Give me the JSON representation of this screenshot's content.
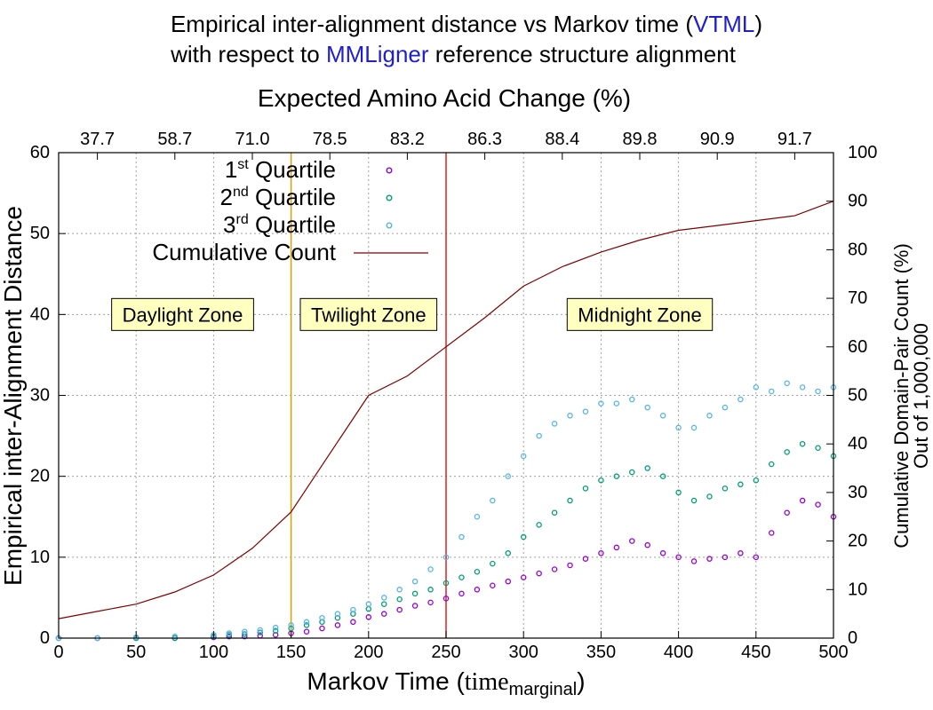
{
  "title": {
    "line1_pre": "Empirical inter-alignment distance vs Markov time (",
    "line1_hl": "VTML",
    "line1_post": ")",
    "line2_hl": "MMLigner",
    "line2_post": " reference structure alignment",
    "line2_pre": "with respect to ",
    "highlight_color": "#1f1fd0"
  },
  "chart_data": {
    "type": "scatter",
    "xlabel_main": "Markov Time (",
    "xlabel_time": "time",
    "xlabel_sub": "marginal",
    "xlabel_end": ")",
    "ylabel": "Empirical inter-Alignment Distance",
    "y2label_line1": "Cumulative Domain-Pair Count (%)",
    "y2label_line2": "Out of 1,000,000",
    "x2label": "Expected Amino Acid Change (%)",
    "xlim": [
      0,
      500
    ],
    "ylim": [
      0,
      60
    ],
    "y2lim": [
      0,
      100
    ],
    "grid": true,
    "x_ticks": [
      "0",
      "50",
      "100",
      "150",
      "200",
      "250",
      "300",
      "350",
      "400",
      "450",
      "500"
    ],
    "y_ticks": [
      "0",
      "10",
      "20",
      "30",
      "40",
      "50",
      "60"
    ],
    "y2_ticks": [
      "0",
      "10",
      "20",
      "30",
      "40",
      "50",
      "60",
      "70",
      "80",
      "90",
      "100"
    ],
    "x2_ticks": [
      {
        "x": 25,
        "label": "37.7"
      },
      {
        "x": 75,
        "label": "58.7"
      },
      {
        "x": 125,
        "label": "71.0"
      },
      {
        "x": 175,
        "label": "78.5"
      },
      {
        "x": 225,
        "label": "83.2"
      },
      {
        "x": 275,
        "label": "86.3"
      },
      {
        "x": 325,
        "label": "88.4"
      },
      {
        "x": 375,
        "label": "89.8"
      },
      {
        "x": 425,
        "label": "90.9"
      },
      {
        "x": 475,
        "label": "91.7"
      }
    ],
    "vlines": [
      {
        "x": 150,
        "color": "#e0a000"
      },
      {
        "x": 250,
        "color": "#e02020"
      }
    ],
    "zones": [
      {
        "label": "Daylight Zone",
        "x": 80,
        "y": 40
      },
      {
        "label": "Twilight Zone",
        "x": 200,
        "y": 40
      },
      {
        "label": "Midnight Zone",
        "x": 375,
        "y": 40
      }
    ],
    "zone_bg": "#ffffc0",
    "legend": {
      "position": "top-left",
      "entries": [
        {
          "pre": "1",
          "sup": "st",
          "post": " Quartile",
          "color": "#9400d3",
          "kind": "point"
        },
        {
          "pre": "2",
          "sup": "nd",
          "post": " Quartile",
          "color": "#009e73",
          "kind": "point"
        },
        {
          "pre": "3",
          "sup": "rd",
          "post": " Quartile",
          "color": "#56b4e9",
          "kind": "point"
        },
        {
          "pre": "Cumulative Count",
          "sup": "",
          "post": "",
          "color": "#800000",
          "kind": "line"
        }
      ]
    },
    "series": [
      {
        "name": "1st Quartile",
        "color": "#9400d3",
        "x": [
          0,
          25,
          50,
          75,
          100,
          110,
          120,
          130,
          140,
          150,
          160,
          170,
          180,
          190,
          200,
          210,
          220,
          230,
          240,
          250,
          260,
          270,
          280,
          290,
          300,
          310,
          320,
          330,
          340,
          350,
          360,
          370,
          380,
          390,
          400,
          410,
          420,
          430,
          440,
          450,
          460,
          470,
          480,
          490,
          500
        ],
        "y": [
          0,
          0,
          0,
          0,
          0.1,
          0.2,
          0.2,
          0.3,
          0.4,
          0.6,
          0.8,
          1.2,
          1.6,
          2.0,
          2.6,
          3.0,
          3.5,
          4.0,
          4.4,
          4.9,
          5.5,
          6.0,
          6.5,
          7.0,
          7.5,
          8.0,
          8.5,
          9.0,
          9.8,
          10.5,
          11.2,
          12.0,
          11.5,
          10.5,
          10.0,
          9.5,
          9.8,
          10.0,
          10.5,
          10.0,
          13.0,
          15.5,
          17.0,
          16.5,
          15.0
        ]
      },
      {
        "name": "2nd Quartile",
        "color": "#009e73",
        "x": [
          0,
          25,
          50,
          75,
          100,
          110,
          120,
          130,
          140,
          150,
          160,
          170,
          180,
          190,
          200,
          210,
          220,
          230,
          240,
          250,
          260,
          270,
          280,
          290,
          300,
          310,
          320,
          330,
          340,
          350,
          360,
          370,
          380,
          390,
          400,
          410,
          420,
          430,
          440,
          450,
          460,
          470,
          480,
          490,
          500
        ],
        "y": [
          0,
          0,
          0,
          0,
          0.2,
          0.4,
          0.5,
          0.7,
          0.9,
          1.2,
          1.6,
          2.0,
          2.5,
          3.0,
          3.6,
          4.2,
          4.8,
          5.5,
          6.0,
          6.8,
          7.5,
          8.2,
          9.2,
          10.5,
          12.5,
          14.0,
          15.5,
          17.0,
          18.5,
          19.5,
          20.0,
          20.5,
          21.0,
          20.0,
          18.0,
          17.0,
          17.5,
          18.5,
          19.0,
          19.5,
          21.5,
          23.0,
          24.0,
          23.5,
          22.5
        ]
      },
      {
        "name": "3rd Quartile",
        "color": "#56b4e9",
        "x": [
          0,
          25,
          50,
          75,
          100,
          110,
          120,
          130,
          140,
          150,
          160,
          170,
          180,
          190,
          200,
          210,
          220,
          230,
          240,
          250,
          260,
          270,
          280,
          290,
          300,
          310,
          320,
          330,
          340,
          350,
          360,
          370,
          380,
          390,
          400,
          410,
          420,
          430,
          440,
          450,
          460,
          470,
          480,
          490,
          500
        ],
        "y": [
          0,
          0,
          0.1,
          0.2,
          0.4,
          0.6,
          0.8,
          1.0,
          1.3,
          1.6,
          2.0,
          2.5,
          3.0,
          3.5,
          4.2,
          5.0,
          6.0,
          7.0,
          8.5,
          10.0,
          12.5,
          15.0,
          17.0,
          20.0,
          22.5,
          25.0,
          26.5,
          27.5,
          28.0,
          29.0,
          29.0,
          29.5,
          28.5,
          27.5,
          26.0,
          26.0,
          27.5,
          28.5,
          29.5,
          31.0,
          30.5,
          31.5,
          31.0,
          30.5,
          31.0
        ]
      },
      {
        "name": "Cumulative Count",
        "color": "#800000",
        "axis": "y2",
        "x": [
          0,
          25,
          50,
          75,
          100,
          125,
          150,
          175,
          200,
          225,
          250,
          275,
          300,
          325,
          350,
          375,
          400,
          425,
          450,
          475,
          500
        ],
        "y": [
          4.0,
          5.5,
          7.0,
          9.5,
          13.0,
          18.5,
          26.0,
          38.0,
          50.0,
          54.0,
          60.0,
          66.0,
          72.5,
          76.5,
          79.5,
          82.0,
          84.0,
          85.0,
          86.0,
          87.0,
          90.0
        ]
      }
    ]
  }
}
